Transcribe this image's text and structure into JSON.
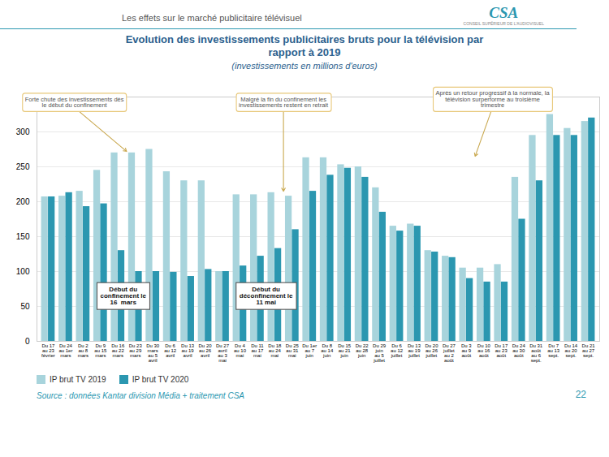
{
  "chart_data": {
    "type": "bar",
    "header": "Les effets sur le marché publicitaire télévisuel",
    "logo": "CSA",
    "logo_caption": "CONSEIL SUPÉRIEUR DE L'AUDIOVISUEL",
    "title": "Evolution des investissements publicitaires bruts pour la télévision par\nrapport à 2019",
    "subtitle": "(investissements en millions d'euros)",
    "source": "Source : données Kantar division Média  + traitement CSA",
    "page_number": "22",
    "categories": [
      "Du 17\nau 23\nfévrier",
      "Du 24\nau 1er\nmars",
      "Du 2\nau 8\nmars",
      "Du 9\nau 15\nmars",
      "Du 16\nau 22\nmars",
      "Du 23\nau 29\nmars",
      "Du 30\nmars\nau 5\navril",
      "Du 6\nau 12\navril",
      "Du 13\nau 19\navril",
      "Du 20\nau 26\navril",
      "Du 27\navril\nau 3\nmai",
      "Du 4\nau 10\nmai",
      "Du 11\nau 17\nmai",
      "Du 18\nau 24\nmai",
      "Du 25\nau 31\nmai",
      "Du 1er\nau 7\njuin",
      "Du 8\nau 14\njuin",
      "Du 15\nau 21\njuin",
      "Du 22\nau 28\njuin",
      "Du 29\njuin\nau 5\njuillet",
      "Du 6\nau 12\njuillet",
      "Du 13\nau 19\njuillet",
      "Du 20\nau 26\njuillet",
      "Du 27\njuillet\nau 2\naoût",
      "Du 3\nau 9\naoût",
      "Du 10\nau 16\naoût",
      "Du 17\nau 23\naoût",
      "Du 24\nau 30\naoût",
      "Du 31\naoût\nau 6\nsept.",
      "Du 7\nau 13\nsept.",
      "Du 14\nau 20\nsept.",
      "Du 21\nau 27\nsept."
    ],
    "series": [
      {
        "name": "IP brut TV 2019",
        "color": "#a8d4dc",
        "values": [
          207,
          208,
          215,
          245,
          270,
          270,
          275,
          243,
          230,
          230,
          100,
          210,
          210,
          213,
          208,
          263,
          263,
          253,
          250,
          220,
          165,
          168,
          130,
          122,
          105,
          105,
          110,
          235,
          295,
          325,
          305,
          315
        ]
      },
      {
        "name": "IP brut TV 2020",
        "color": "#2b97b0",
        "values": [
          207,
          213,
          193,
          197,
          130,
          100,
          100,
          99,
          93,
          103,
          100,
          108,
          122,
          133,
          160,
          215,
          238,
          248,
          235,
          185,
          158,
          165,
          128,
          120,
          90,
          85,
          85,
          175,
          230,
          295,
          295,
          320
        ]
      }
    ],
    "ylim": [
      0,
      350
    ],
    "yticks": [
      0,
      50,
      100,
      150,
      200,
      250,
      300
    ],
    "grid": true,
    "legend": "bottom-left",
    "annotations": [
      {
        "text": "Forte chute des investissements dès\nle début du confinement",
        "x": 4.5,
        "y": 272,
        "text_x": 1.5,
        "text_y": 335
      },
      {
        "text": "Malgré la fin du confinement les\ninvestissements restent en retrait",
        "x": 13.5,
        "y": 215,
        "text_x": 13.5,
        "text_y": 335
      },
      {
        "text": "Après un retour progressif à la normale, la\ntélévision surperforme au troisième\ntrimestre",
        "x": 24.5,
        "y": 265,
        "text_x": 25.5,
        "text_y": 335
      }
    ],
    "boxes": [
      {
        "text": "Début du\nconfinement le\n16  mars",
        "x": 4.3,
        "y": 65
      },
      {
        "text": "Début du\ndéconfinement le\n11 mai",
        "x": 12.5,
        "y": 65
      }
    ]
  }
}
